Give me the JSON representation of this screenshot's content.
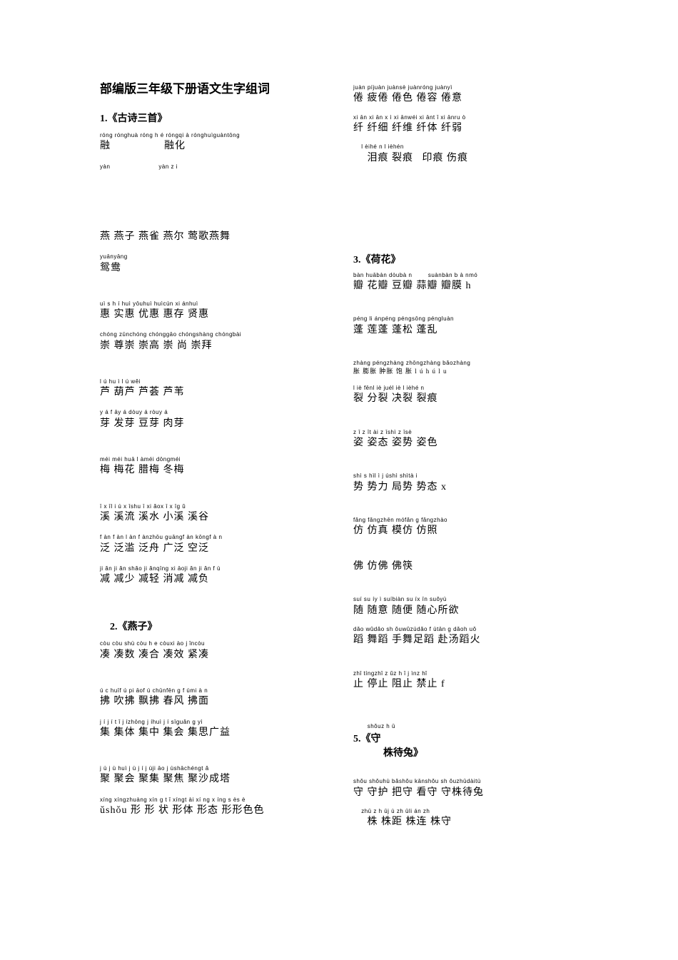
{
  "title": "部编版三年级下册语文生字组词",
  "left": [
    {
      "type": "lesson",
      "text": "1.《古诗三首》"
    },
    {
      "type": "entry",
      "pinyin": "róng rónghuà róng h é róngqi à rónghuìguàntōng",
      "hanzi": "融　　　　　融化"
    },
    {
      "type": "entry",
      "pinyin": "yàn　　　　　　　　yàn z i",
      "hanzi": ""
    },
    {
      "type": "biggap"
    },
    {
      "type": "biggap"
    },
    {
      "type": "entry",
      "pinyin": "",
      "hanzi": "燕 燕子 燕雀 燕尔 莺歌燕舞"
    },
    {
      "type": "entry",
      "pinyin": "yuānyāng",
      "hanzi": "鸳鸯"
    },
    {
      "type": "gap"
    },
    {
      "type": "entry",
      "pinyin": "uì s h í huì yōuhuì huìcún xi ánhuì",
      "hanzi": "惠 实惠 优惠 惠存 贤惠"
    },
    {
      "type": "entry",
      "pinyin": "chóng zūnchóng chónggāo chóngshàng chóngbài",
      "hanzi": "崇 尊崇 崇高 崇 尚 崇拜"
    },
    {
      "type": "gap"
    },
    {
      "type": "entry",
      "pinyin": "l ú hu ì l ú wěi",
      "hanzi": "芦 葫芦 芦荟 芦苇"
    },
    {
      "type": "entry",
      "pinyin": "y á f āy á dòuy á ròuy á",
      "hanzi": "芽 发芽 豆芽 肉芽"
    },
    {
      "type": "gap"
    },
    {
      "type": "entry",
      "pinyin": "méi méi huā l àméi dōngméi",
      "hanzi": "梅 梅花 腊梅 冬梅"
    },
    {
      "type": "gap"
    },
    {
      "type": "entry",
      "pinyin": "ī x īl i ú x īshu ī xi ǎox ī x īg ǔ",
      "hanzi": "溪 溪流 溪水 小溪 溪谷"
    },
    {
      "type": "entry",
      "pinyin": "f àn f àn l àn f ànzhōu guāngf àn kōngf à n",
      "hanzi": "泛 泛滥 泛舟 广泛 空泛"
    },
    {
      "type": "entry",
      "pinyin": "ji ǎn ji ǎn shǎo ji ǎnqīng xi āoji ǎn ji ǎn f ù",
      "hanzi": "减 减少 减轻 消减 减负"
    },
    {
      "type": "gap"
    },
    {
      "type": "lesson",
      "text": "　2.《燕子》"
    },
    {
      "type": "entry",
      "pinyin": "còu còu shù còu h e còuxi ào j ǐncòu",
      "hanzi": "凑 凑数 凑合 凑效 紧凑"
    },
    {
      "type": "gap"
    },
    {
      "type": "entry",
      "pinyin": "ú c huīf ú pi āof ú chūnfēn g f úmi à n",
      "hanzi": "拂 吹拂 飘拂 春风 拂面"
    },
    {
      "type": "entry",
      "pinyin": "j í j í t ǐ j ízhōng j íhuì j í sīguǎn g yì",
      "hanzi": "集 集体 集中 集会 集思广益"
    },
    {
      "type": "gap"
    },
    {
      "type": "entry",
      "pinyin": "j ù j ù huì j ù j í j ùji āo j ùshāchéngt ǎ",
      "hanzi": "聚 聚会 聚集 聚焦 聚沙成塔"
    },
    {
      "type": "entry",
      "pinyin": "xíng xíngzhuàng xín g t ǐ xíngt ài xí ng x íng s ès è",
      "hanzi": "ǔshǒu 形 形 状 形体 形态 形形色色"
    }
  ],
  "right": [
    {
      "type": "entry",
      "pinyin": "juàn píjuàn juànsè juànróng juànyì",
      "hanzi": "倦 疲倦 倦色 倦容 倦意"
    },
    {
      "type": "entry",
      "pinyin": "xi ān xi ān x ì xi ānwéi xi ānt ǐ xi ānru ò",
      "hanzi": "纤 纤细 纤维 纤体 纤弱"
    },
    {
      "type": "entry",
      "pinyin": "　 l èihé n l ièhén",
      "hanzi": "　 泪痕 裂痕  印痕 伤痕"
    },
    {
      "type": "biggap"
    },
    {
      "type": "biggap"
    },
    {
      "type": "biggap"
    },
    {
      "type": "lesson",
      "text": "3.《荷花》"
    },
    {
      "type": "entry",
      "pinyin": "bàn huābàn dòubà n    suànbàn b à nmó",
      "hanzi": "瓣 花瓣 豆瓣 蒜瓣 瓣膜 h"
    },
    {
      "type": "gap"
    },
    {
      "type": "entry",
      "pinyin": "péng li ánpéng péngsōng péngluàn",
      "hanzi": "蓬 莲蓬 蓬松 蓬乱"
    },
    {
      "type": "gap"
    },
    {
      "type": "entry",
      "pinyin": "zhàng péngzhàng zhōngzhàng bǎozhàng",
      "hanzi": "胀 膨胀 肿胀 饱 胀 l ú h ú l u",
      "small": true
    },
    {
      "type": "entry",
      "pinyin": "l iè fēnl iè juél iè l ièhé n",
      "hanzi": "裂 分裂 决裂 裂痕"
    },
    {
      "type": "gap"
    },
    {
      "type": "entry",
      "pinyin": "z ī z īt ài z īshì z īsè",
      "hanzi": "姿 姿态 姿势 姿色"
    },
    {
      "type": "gap"
    },
    {
      "type": "entry",
      "pinyin": "shì s hìl ì j úshì shìtà i",
      "hanzi": "势 势力 局势 势态 x"
    },
    {
      "type": "gap"
    },
    {
      "type": "entry",
      "pinyin": "fǎng fǎngzhēn mófǎn g fǎngzhào",
      "hanzi": "仿 仿真 模仿 仿照"
    },
    {
      "type": "gap"
    },
    {
      "type": "entry",
      "pinyin": "",
      "hanzi": "佛 仿佛 佛筷"
    },
    {
      "type": "gap"
    },
    {
      "type": "entry",
      "pinyin": "suí su íy ì suíbiàn su íx īn suǒyù",
      "hanzi": "随 随意 随便 随心所欲"
    },
    {
      "type": "entry",
      "pinyin": "dǎo wǔdǎo sh ǒuwǔzúdǎo f ùtān g dǎoh uǒ",
      "hanzi": "蹈 舞蹈 手舞足蹈 赴汤蹈火"
    },
    {
      "type": "gap"
    },
    {
      "type": "entry",
      "pinyin": "zhǐ tíngzhǐ z ǔz h ǐ j ìnz hǐ",
      "hanzi": "止 停止 阻止 禁止 f"
    },
    {
      "type": "gap"
    },
    {
      "type": "lesson",
      "text": "　　 shǒuz h ū\n5.《守\n　　　株待兔》",
      "mixed": true
    },
    {
      "type": "gap"
    },
    {
      "type": "entry",
      "pinyin": "shǒu shǒuhù bǎshǒu kānshǒu sh ǒuzhūdàitù",
      "hanzi": "守 守护 把守 看守 守株待兔"
    },
    {
      "type": "entry",
      "pinyin": "　 zhū z h ūj ù zh ūli án zh",
      "hanzi": "　 株 株距 株连 株守"
    }
  ]
}
